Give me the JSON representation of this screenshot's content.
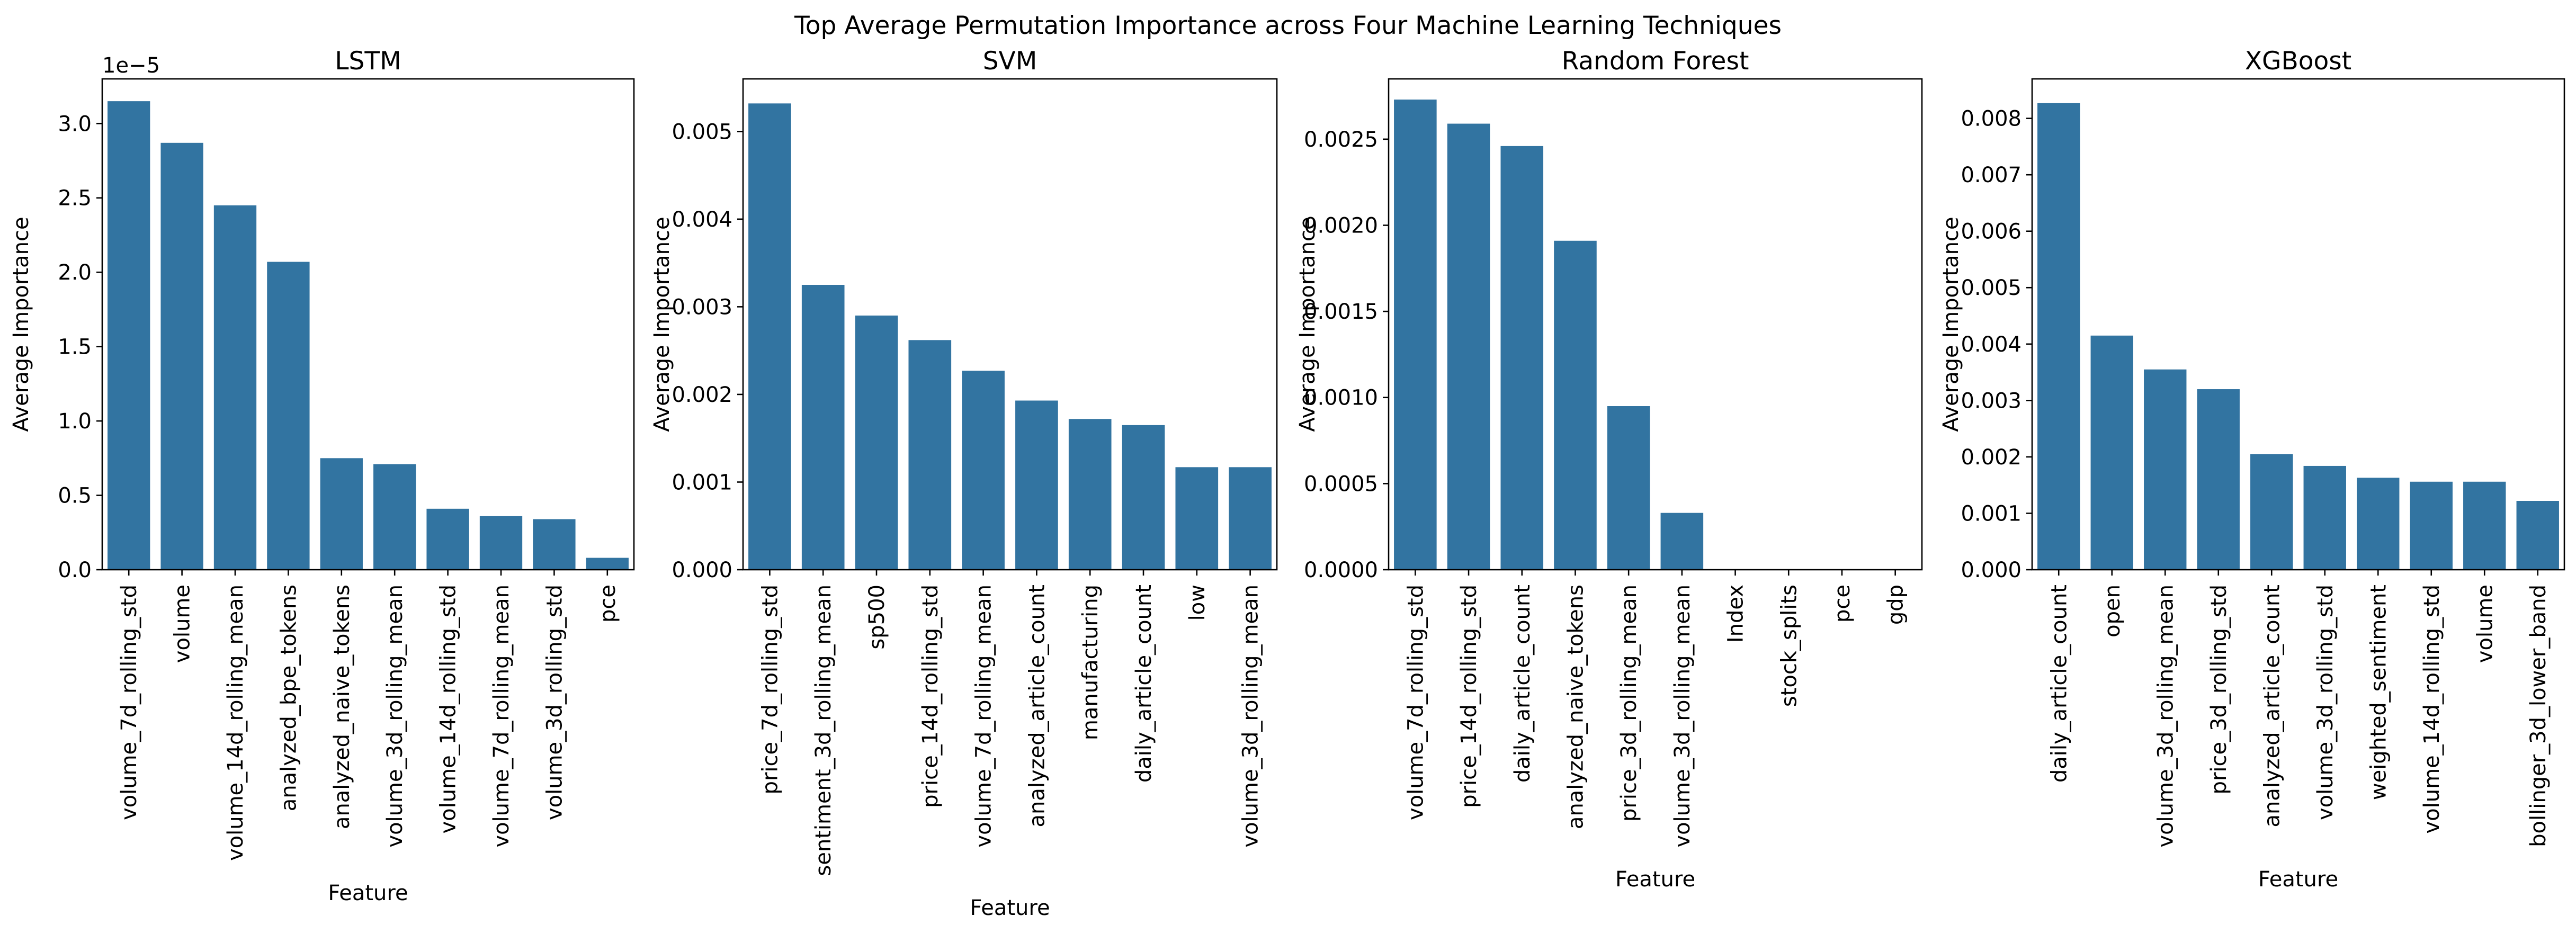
{
  "figure": {
    "suptitle": "Top Average Permutation Importance across Four Machine Learning Techniques",
    "bar_color": "#3274a1"
  },
  "chart_data": [
    {
      "type": "bar",
      "title": "LSTM",
      "xlabel": "Feature",
      "ylabel": "Average Importance",
      "offset_text": "1e−5",
      "scale": 1e-05,
      "ylim": [
        0,
        3.3
      ],
      "yticks": [
        0.0,
        0.5,
        1.0,
        1.5,
        2.0,
        2.5,
        3.0
      ],
      "ytick_labels": [
        "0.0",
        "0.5",
        "1.0",
        "1.5",
        "2.0",
        "2.5",
        "3.0"
      ],
      "categories": [
        "volume_7d_rolling_std",
        "volume",
        "volume_14d_rolling_mean",
        "analyzed_bpe_tokens",
        "analyzed_naive_tokens",
        "volume_3d_rolling_mean",
        "volume_14d_rolling_std",
        "volume_7d_rolling_mean",
        "volume_3d_rolling_std",
        "pce"
      ],
      "values": [
        3.15,
        2.87,
        2.45,
        2.07,
        0.75,
        0.71,
        0.41,
        0.36,
        0.34,
        0.08
      ]
    },
    {
      "type": "bar",
      "title": "SVM",
      "xlabel": "Feature",
      "ylabel": "Average Importance",
      "offset_text": "",
      "scale": 1,
      "ylim": [
        0,
        0.0056
      ],
      "yticks": [
        0,
        0.001,
        0.002,
        0.003,
        0.004,
        0.005
      ],
      "ytick_labels": [
        "0.000",
        "0.001",
        "0.002",
        "0.003",
        "0.004",
        "0.005"
      ],
      "categories": [
        "price_7d_rolling_std",
        "sentiment_3d_rolling_mean",
        "sp500",
        "price_14d_rolling_std",
        "volume_7d_rolling_mean",
        "analyzed_article_count",
        "manufacturing",
        "daily_article_count",
        "low",
        "volume_3d_rolling_mean"
      ],
      "values": [
        0.00532,
        0.00325,
        0.0029,
        0.00262,
        0.00227,
        0.00193,
        0.00172,
        0.00165,
        0.00117,
        0.00117
      ]
    },
    {
      "type": "bar",
      "title": "Random Forest",
      "xlabel": "Feature",
      "ylabel": "Average Importance",
      "offset_text": "",
      "scale": 1,
      "ylim": [
        0,
        0.00285
      ],
      "yticks": [
        0,
        0.0005,
        0.001,
        0.0015,
        0.002,
        0.0025
      ],
      "ytick_labels": [
        "0.0000",
        "0.0005",
        "0.0010",
        "0.0015",
        "0.0020",
        "0.0025"
      ],
      "categories": [
        "volume_7d_rolling_std",
        "price_14d_rolling_std",
        "daily_article_count",
        "analyzed_naive_tokens",
        "price_3d_rolling_mean",
        "volume_3d_rolling_mean",
        "Index",
        "stock_splits",
        "pce",
        "gdp"
      ],
      "values": [
        0.00273,
        0.00259,
        0.00246,
        0.00191,
        0.00095,
        0.00033,
        0,
        0,
        0,
        0
      ]
    },
    {
      "type": "bar",
      "title": "XGBoost",
      "xlabel": "Feature",
      "ylabel": "Average Importance",
      "offset_text": "",
      "scale": 1,
      "ylim": [
        0,
        0.0087
      ],
      "yticks": [
        0,
        0.001,
        0.002,
        0.003,
        0.004,
        0.005,
        0.006,
        0.007,
        0.008
      ],
      "ytick_labels": [
        "0.000",
        "0.001",
        "0.002",
        "0.003",
        "0.004",
        "0.005",
        "0.006",
        "0.007",
        "0.008"
      ],
      "categories": [
        "daily_article_count",
        "open",
        "volume_3d_rolling_mean",
        "price_3d_rolling_std",
        "analyzed_article_count",
        "volume_3d_rolling_std",
        "weighted_sentiment",
        "volume_14d_rolling_std",
        "volume",
        "bollinger_3d_lower_band"
      ],
      "values": [
        0.00827,
        0.00415,
        0.00355,
        0.0032,
        0.00205,
        0.00184,
        0.00163,
        0.00156,
        0.00156,
        0.00122
      ]
    }
  ]
}
